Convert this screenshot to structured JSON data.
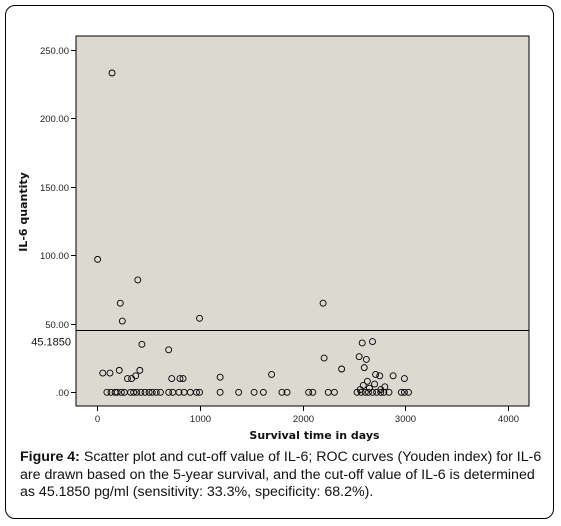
{
  "chart_data": {
    "type": "scatter",
    "title": "",
    "xlabel": "Survival time in days",
    "ylabel": "IL-6 quantity",
    "xlim": [
      -200,
      4200
    ],
    "ylim": [
      -10,
      260
    ],
    "x_ticks": [
      0,
      1000,
      2000,
      3000,
      4000
    ],
    "x_tick_labels": [
      "0",
      "1000",
      "2000",
      "3000",
      "4000"
    ],
    "y_ticks": [
      0,
      50,
      100,
      150,
      200,
      250
    ],
    "y_tick_labels": [
      ".00",
      "50.00",
      "100.00",
      "150.00",
      "200.00",
      "250.00"
    ],
    "cutoff": {
      "value": 45.185,
      "label": "45.1850"
    },
    "grid": false,
    "marker": "open-circle",
    "plot_background": "#dcd9d0",
    "points": [
      [
        10,
        97
      ],
      [
        150,
        233
      ],
      [
        230,
        65
      ],
      [
        250,
        52
      ],
      [
        400,
        82
      ],
      [
        440,
        35
      ],
      [
        1000,
        54
      ],
      [
        2200,
        65
      ],
      [
        60,
        14
      ],
      [
        130,
        14
      ],
      [
        220,
        16
      ],
      [
        300,
        10
      ],
      [
        340,
        10
      ],
      [
        380,
        12
      ],
      [
        420,
        16
      ],
      [
        700,
        31
      ],
      [
        730,
        10
      ],
      [
        810,
        10
      ],
      [
        840,
        10
      ],
      [
        1200,
        11
      ],
      [
        1700,
        13
      ],
      [
        2210,
        25
      ],
      [
        2380,
        17
      ],
      [
        2550,
        26
      ],
      [
        2580,
        36
      ],
      [
        2600,
        18
      ],
      [
        2620,
        24
      ],
      [
        2680,
        37
      ],
      [
        2710,
        13
      ],
      [
        2750,
        12
      ],
      [
        2880,
        12
      ],
      [
        2990,
        10
      ],
      [
        100,
        0
      ],
      [
        140,
        0
      ],
      [
        180,
        0
      ],
      [
        200,
        0
      ],
      [
        240,
        0
      ],
      [
        270,
        0
      ],
      [
        330,
        0
      ],
      [
        360,
        0
      ],
      [
        390,
        0
      ],
      [
        430,
        0
      ],
      [
        470,
        0
      ],
      [
        510,
        0
      ],
      [
        540,
        0
      ],
      [
        580,
        0
      ],
      [
        620,
        0
      ],
      [
        700,
        0
      ],
      [
        740,
        0
      ],
      [
        800,
        0
      ],
      [
        850,
        0
      ],
      [
        910,
        0
      ],
      [
        970,
        0
      ],
      [
        1000,
        0
      ],
      [
        1200,
        0
      ],
      [
        1380,
        0
      ],
      [
        1530,
        0
      ],
      [
        1620,
        0
      ],
      [
        1800,
        0
      ],
      [
        1850,
        0
      ],
      [
        2060,
        0
      ],
      [
        2100,
        0
      ],
      [
        2250,
        0
      ],
      [
        2310,
        0
      ],
      [
        2530,
        0
      ],
      [
        2570,
        0
      ],
      [
        2610,
        0
      ],
      [
        2640,
        0
      ],
      [
        2680,
        0
      ],
      [
        2720,
        0
      ],
      [
        2760,
        0
      ],
      [
        2790,
        0
      ],
      [
        2840,
        0
      ],
      [
        2960,
        0
      ],
      [
        2990,
        0
      ],
      [
        3030,
        0
      ],
      [
        2590,
        5
      ],
      [
        2630,
        8
      ],
      [
        2650,
        3
      ],
      [
        2700,
        6
      ],
      [
        2760,
        2
      ],
      [
        2800,
        4
      ],
      [
        2560,
        2
      ]
    ]
  },
  "caption": {
    "label": "Figure 4:",
    "text": " Scatter plot and cut-off value of IL-6; ROC curves (Youden index) for IL-6 are drawn based on the 5-year survival, and the cut-off value of IL-6 is determined as 45.1850 pg/ml (sensitivity: 33.3%, specificity: 68.2%)."
  }
}
